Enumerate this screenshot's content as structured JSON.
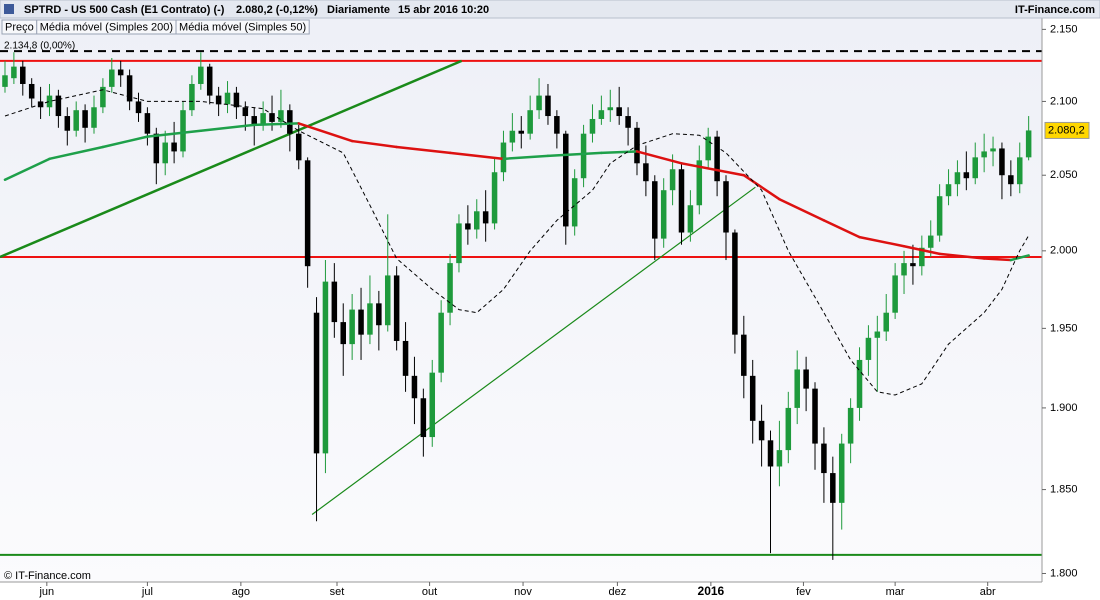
{
  "chart_data": {
    "type": "candlestick",
    "title": "SPTRD - US 500 Cash (E1 Contrato) (-)",
    "last_price_text": "2.080,2 (-0,12%)",
    "interval": "Diariamente",
    "timestamp": "15 abr 2016 10:20",
    "brand": "IT-Finance.com",
    "copyright": "© IT-Finance.com",
    "log_scale": true,
    "ylim": [
      1795,
      2158
    ],
    "yticks": [
      {
        "value": 1800,
        "label": "1.800"
      },
      {
        "value": 1850,
        "label": "1.850"
      },
      {
        "value": 1900,
        "label": "1.900"
      },
      {
        "value": 1950,
        "label": "1.950"
      },
      {
        "value": 2000,
        "label": "2.000"
      },
      {
        "value": 2050,
        "label": "2.050"
      },
      {
        "value": 2100,
        "label": "2.100"
      },
      {
        "value": 2150,
        "label": "2.150"
      }
    ],
    "xlim": [
      -0.56,
      116.5
    ],
    "xticks": [
      {
        "value": 4.7,
        "label": "jun"
      },
      {
        "value": 16,
        "label": "jul"
      },
      {
        "value": 26.5,
        "label": "ago"
      },
      {
        "value": 37.3,
        "label": "set"
      },
      {
        "value": 47.7,
        "label": "out"
      },
      {
        "value": 58.2,
        "label": "nov"
      },
      {
        "value": 68.8,
        "label": "dez"
      },
      {
        "value": 79.3,
        "label": "2016"
      },
      {
        "value": 89.7,
        "label": "fev"
      },
      {
        "value": 100,
        "label": "mar"
      },
      {
        "value": 110.4,
        "label": "abr"
      }
    ],
    "price_series": {
      "name": "Preço",
      "up_color": "#1e9a3c",
      "down_color": "#000000",
      "candles": [
        [
          2110,
          2128,
          2106,
          2118
        ],
        [
          2116,
          2134,
          2112,
          2124
        ],
        [
          2124,
          2128,
          2104,
          2112
        ],
        [
          2112,
          2116,
          2096,
          2102
        ],
        [
          2100,
          2110,
          2088,
          2096
        ],
        [
          2096,
          2112,
          2090,
          2104
        ],
        [
          2104,
          2108,
          2082,
          2090
        ],
        [
          2090,
          2096,
          2070,
          2080
        ],
        [
          2080,
          2100,
          2076,
          2094
        ],
        [
          2094,
          2098,
          2072,
          2082
        ],
        [
          2082,
          2104,
          2078,
          2096
        ],
        [
          2096,
          2116,
          2092,
          2110
        ],
        [
          2110,
          2130,
          2106,
          2122
        ],
        [
          2122,
          2128,
          2110,
          2118
        ],
        [
          2118,
          2122,
          2094,
          2100
        ],
        [
          2100,
          2106,
          2086,
          2092
        ],
        [
          2092,
          2096,
          2070,
          2078
        ],
        [
          2078,
          2082,
          2044,
          2058
        ],
        [
          2058,
          2080,
          2050,
          2072
        ],
        [
          2072,
          2086,
          2058,
          2066
        ],
        [
          2066,
          2100,
          2062,
          2094
        ],
        [
          2094,
          2118,
          2090,
          2112
        ],
        [
          2112,
          2134,
          2108,
          2124
        ],
        [
          2124,
          2126,
          2098,
          2104
        ],
        [
          2104,
          2110,
          2090,
          2098
        ],
        [
          2098,
          2114,
          2092,
          2106
        ],
        [
          2106,
          2110,
          2088,
          2096
        ],
        [
          2096,
          2100,
          2080,
          2090
        ],
        [
          2090,
          2096,
          2070,
          2084
        ],
        [
          2084,
          2100,
          2080,
          2092
        ],
        [
          2092,
          2104,
          2080,
          2086
        ],
        [
          2086,
          2108,
          2082,
          2094
        ],
        [
          2094,
          2098,
          2066,
          2078
        ],
        [
          2078,
          2084,
          2054,
          2060
        ],
        [
          2060,
          2062,
          1976,
          1990
        ],
        [
          1960,
          1970,
          1831,
          1872
        ],
        [
          1872,
          1994,
          1860,
          1980
        ],
        [
          1980,
          1992,
          1944,
          1954
        ],
        [
          1954,
          1966,
          1920,
          1940
        ],
        [
          1940,
          1972,
          1930,
          1962
        ],
        [
          1962,
          1976,
          1930,
          1946
        ],
        [
          1946,
          1984,
          1940,
          1966
        ],
        [
          1966,
          1974,
          1936,
          1952
        ],
        [
          1952,
          2024,
          1948,
          1984
        ],
        [
          1984,
          1990,
          1936,
          1942
        ],
        [
          1942,
          1954,
          1910,
          1920
        ],
        [
          1920,
          1932,
          1890,
          1906
        ],
        [
          1906,
          1912,
          1870,
          1882
        ],
        [
          1882,
          1930,
          1876,
          1922
        ],
        [
          1922,
          1968,
          1916,
          1960
        ],
        [
          1960,
          1998,
          1952,
          1992
        ],
        [
          1992,
          2024,
          1986,
          2018
        ],
        [
          2018,
          2030,
          2004,
          2014
        ],
        [
          2014,
          2034,
          2008,
          2026
        ],
        [
          2026,
          2040,
          2006,
          2018
        ],
        [
          2018,
          2062,
          2014,
          2052
        ],
        [
          2052,
          2080,
          2046,
          2072
        ],
        [
          2072,
          2092,
          2066,
          2080
        ],
        [
          2080,
          2090,
          2068,
          2078
        ],
        [
          2078,
          2104,
          2074,
          2094
        ],
        [
          2094,
          2116,
          2088,
          2104
        ],
        [
          2104,
          2112,
          2084,
          2090
        ],
        [
          2090,
          2094,
          2068,
          2078
        ],
        [
          2078,
          2080,
          2004,
          2016
        ],
        [
          2016,
          2054,
          2010,
          2048
        ],
        [
          2048,
          2084,
          2042,
          2078
        ],
        [
          2078,
          2098,
          2072,
          2088
        ],
        [
          2088,
          2104,
          2084,
          2094
        ],
        [
          2094,
          2108,
          2086,
          2096
        ],
        [
          2096,
          2110,
          2084,
          2090
        ],
        [
          2090,
          2096,
          2070,
          2082
        ],
        [
          2082,
          2086,
          2050,
          2058
        ],
        [
          2058,
          2070,
          2036,
          2046
        ],
        [
          2046,
          2050,
          1994,
          2008
        ],
        [
          2008,
          2048,
          2002,
          2040
        ],
        [
          2040,
          2064,
          2030,
          2054
        ],
        [
          2054,
          2058,
          2004,
          2012
        ],
        [
          2012,
          2040,
          2006,
          2030
        ],
        [
          2030,
          2070,
          2024,
          2060
        ],
        [
          2060,
          2082,
          2054,
          2076
        ],
        [
          2076,
          2080,
          2036,
          2046
        ],
        [
          2046,
          2050,
          1994,
          2012
        ],
        [
          2012,
          2014,
          1934,
          1946
        ],
        [
          1946,
          1958,
          1906,
          1920
        ],
        [
          1920,
          1930,
          1878,
          1892
        ],
        [
          1892,
          1902,
          1864,
          1880
        ],
        [
          1880,
          1886,
          1812,
          1864
        ],
        [
          1864,
          1892,
          1852,
          1874
        ],
        [
          1874,
          1910,
          1866,
          1900
        ],
        [
          1900,
          1936,
          1890,
          1924
        ],
        [
          1924,
          1932,
          1898,
          1912
        ],
        [
          1912,
          1916,
          1862,
          1878
        ],
        [
          1878,
          1888,
          1842,
          1860
        ],
        [
          1860,
          1870,
          1808,
          1842
        ],
        [
          1842,
          1884,
          1826,
          1878
        ],
        [
          1878,
          1906,
          1866,
          1900
        ],
        [
          1900,
          1938,
          1892,
          1930
        ],
        [
          1930,
          1952,
          1920,
          1944
        ],
        [
          1944,
          1958,
          1910,
          1948
        ],
        [
          1948,
          1972,
          1942,
          1960
        ],
        [
          1960,
          1992,
          1956,
          1984
        ],
        [
          1984,
          2000,
          1972,
          1992
        ],
        [
          1992,
          2004,
          1978,
          1990
        ],
        [
          1990,
          2010,
          1984,
          2002
        ],
        [
          2002,
          2020,
          1996,
          2010
        ],
        [
          2010,
          2044,
          2006,
          2036
        ],
        [
          2036,
          2054,
          2030,
          2044
        ],
        [
          2044,
          2060,
          2036,
          2052
        ],
        [
          2052,
          2066,
          2040,
          2048
        ],
        [
          2048,
          2072,
          2044,
          2062
        ],
        [
          2062,
          2078,
          2052,
          2066
        ],
        [
          2066,
          2076,
          2056,
          2068
        ],
        [
          2068,
          2072,
          2034,
          2050
        ],
        [
          2050,
          2060,
          2036,
          2044
        ],
        [
          2044,
          2072,
          2038,
          2062
        ],
        [
          2062,
          2090,
          2060,
          2080.2
        ]
      ]
    },
    "overlays": [
      {
        "name": "Média móvel (Simples 200)",
        "color": "#1ea04a",
        "falling_color": "#dd1111",
        "x": [
          0,
          5,
          11,
          16,
          22,
          28,
          33,
          39,
          44,
          50,
          56,
          61,
          67,
          71,
          76,
          83,
          87,
          92,
          96,
          101,
          105,
          110,
          113,
          115
        ],
        "values": [
          2047,
          2061,
          2069,
          2076,
          2080,
          2084,
          2085,
          2073,
          2069,
          2065,
          2061,
          2063,
          2065,
          2066,
          2058,
          2050,
          2034,
          2020,
          2009,
          2003,
          1998,
          1995,
          1994,
          1997
        ]
      },
      {
        "name": "Média móvel (Simples 50)",
        "color": "#000000",
        "dashed": true,
        "x": [
          0,
          5,
          11,
          16,
          22,
          29,
          33,
          38,
          41,
          44,
          48,
          51,
          53,
          56,
          59,
          62,
          66,
          68,
          71,
          75,
          78,
          81,
          85,
          88,
          92,
          95,
          98,
          100,
          103,
          106,
          110,
          112,
          114,
          115
        ],
        "values": [
          2090,
          2100,
          2108,
          2100,
          2100,
          2095,
          2080,
          2065,
          2030,
          1995,
          1975,
          1962,
          1960,
          1975,
          2000,
          2020,
          2040,
          2058,
          2070,
          2078,
          2077,
          2065,
          2040,
          2000,
          1960,
          1930,
          1910,
          1908,
          1915,
          1940,
          1960,
          1975,
          2000,
          2010
        ]
      }
    ],
    "levels": [
      {
        "value": 2134.8,
        "color": "#000000",
        "dashed": true,
        "label": "2.134,8 (0,00%)"
      },
      {
        "value": 2128,
        "color": "#ee1111"
      },
      {
        "value": 1996,
        "color": "#ee1111"
      },
      {
        "value": 1811,
        "color": "#1a8a1a"
      }
    ],
    "trendlines": [
      {
        "color": "#1a8a1a",
        "x": [
          -0.56,
          51.3
        ],
        "values": [
          1996,
          2128
        ]
      },
      {
        "color": "#1a8a1a",
        "x": [
          34.5,
          84.3
        ],
        "values": [
          1835,
          2042
        ]
      }
    ],
    "last": {
      "value": 2080.2,
      "label": "2.080,2",
      "color": "#ffd700"
    }
  }
}
